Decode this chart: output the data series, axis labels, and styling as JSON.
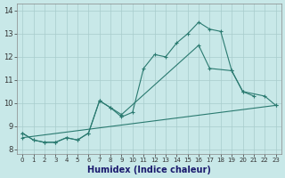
{
  "title": "",
  "xlabel": "Humidex (Indice chaleur)",
  "bg_color": "#c8e8e8",
  "grid_color": "#a8cccc",
  "line_color": "#2a7a70",
  "series1_x": [
    0,
    1,
    2,
    3,
    4,
    5,
    6,
    7,
    8,
    9,
    10,
    11,
    12,
    13,
    14,
    15,
    16,
    17,
    18,
    19,
    20,
    21
  ],
  "series1_y": [
    8.7,
    8.4,
    8.3,
    8.3,
    8.5,
    8.4,
    8.7,
    10.1,
    9.8,
    9.4,
    9.6,
    11.5,
    12.1,
    12.0,
    12.6,
    13.0,
    13.5,
    13.2,
    13.1,
    11.4,
    10.5,
    10.3
  ],
  "series2_x": [
    0,
    1,
    2,
    3,
    4,
    5,
    6,
    7,
    8,
    9,
    16,
    17,
    19,
    20,
    22,
    23
  ],
  "series2_y": [
    8.7,
    8.4,
    8.3,
    8.3,
    8.5,
    8.4,
    8.7,
    10.1,
    9.8,
    9.5,
    12.5,
    11.5,
    11.4,
    10.5,
    10.3,
    9.9
  ],
  "series3_x": [
    0,
    23
  ],
  "series3_y": [
    8.5,
    9.9
  ],
  "xlim": [
    -0.5,
    23.5
  ],
  "ylim": [
    7.8,
    14.3
  ],
  "xticks": [
    0,
    1,
    2,
    3,
    4,
    5,
    6,
    7,
    8,
    9,
    10,
    11,
    12,
    13,
    14,
    15,
    16,
    17,
    18,
    19,
    20,
    21,
    22,
    23
  ],
  "yticks": [
    8,
    9,
    10,
    11,
    12,
    13,
    14
  ],
  "xlabel_fontsize": 7,
  "tick_fontsize": 5,
  "line_width": 0.8,
  "marker_size": 2.5
}
